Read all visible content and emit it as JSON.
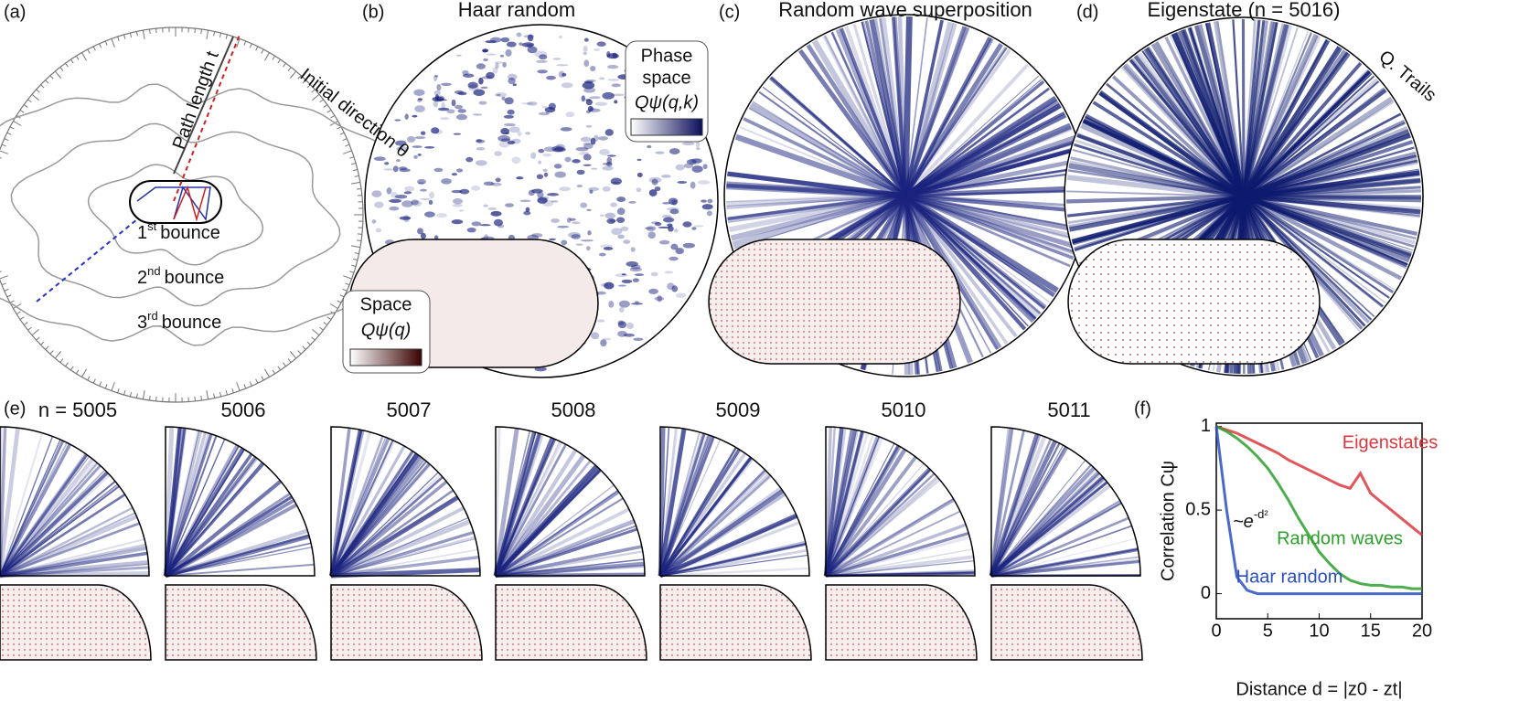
{
  "panel_a": {
    "label": "(a)",
    "initial_direction": "Initial direction θ",
    "path_length": "Path length t",
    "bounces": [
      {
        "n": "1",
        "sup": "st",
        "text": "bounce"
      },
      {
        "n": "2",
        "sup": "nd",
        "text": "bounce"
      },
      {
        "n": "3",
        "sup": "rd",
        "text": "bounce"
      }
    ]
  },
  "panel_b": {
    "label": "(b)",
    "title": "Haar random",
    "phase_space_1": "Phase",
    "phase_space_2": "space",
    "phase_symbol": "Qψ(q,k)",
    "space": "Space",
    "space_symbol": "Qψ(q)"
  },
  "panel_c": {
    "label": "(c)",
    "title": "Random wave superposition"
  },
  "panel_d": {
    "label": "(d)",
    "title": "Eigenstate (n = 5016)",
    "trails": "Q. Trails"
  },
  "panel_e": {
    "label": "(e)",
    "states": [
      "n = 5005",
      "5006",
      "5007",
      "5008",
      "5009",
      "5010",
      "5011"
    ]
  },
  "chart_data": {
    "type": "line",
    "panel_label": "(f)",
    "x_label": "Distance d = |z0 - zt|",
    "y_label": "Correlation Cψ",
    "annotation": "~e",
    "annotation_exp": "-d²",
    "x": [
      0,
      1,
      2,
      3,
      4,
      5,
      6,
      7,
      8,
      9,
      10,
      11,
      12,
      13,
      14,
      15,
      16,
      17,
      18,
      19,
      20
    ],
    "xlim": [
      0,
      20
    ],
    "ylim": [
      -0.15,
      1.02
    ],
    "xticks": [
      0,
      5,
      10,
      15,
      20
    ],
    "yticks": [
      0,
      0.5,
      1
    ],
    "series": [
      {
        "name": "Eigenstates",
        "color": "#d9383f",
        "values": [
          1,
          0.98,
          0.96,
          0.93,
          0.9,
          0.87,
          0.84,
          0.8,
          0.77,
          0.74,
          0.71,
          0.68,
          0.65,
          0.63,
          0.72,
          0.6,
          0.55,
          0.5,
          0.45,
          0.4,
          0.35
        ]
      },
      {
        "name": "Random waves",
        "color": "#2ca02c",
        "values": [
          1,
          0.97,
          0.93,
          0.88,
          0.82,
          0.75,
          0.66,
          0.56,
          0.45,
          0.35,
          0.25,
          0.18,
          0.12,
          0.08,
          0.06,
          0.05,
          0.05,
          0.04,
          0.04,
          0.03,
          0.03
        ]
      },
      {
        "name": "Haar random",
        "color": "#2a4fc4",
        "values": [
          1,
          0.5,
          0.1,
          0.02,
          0,
          0,
          0,
          0,
          0,
          0,
          0,
          0,
          0,
          0,
          0,
          0,
          0,
          0,
          0,
          0,
          0
        ]
      }
    ]
  }
}
